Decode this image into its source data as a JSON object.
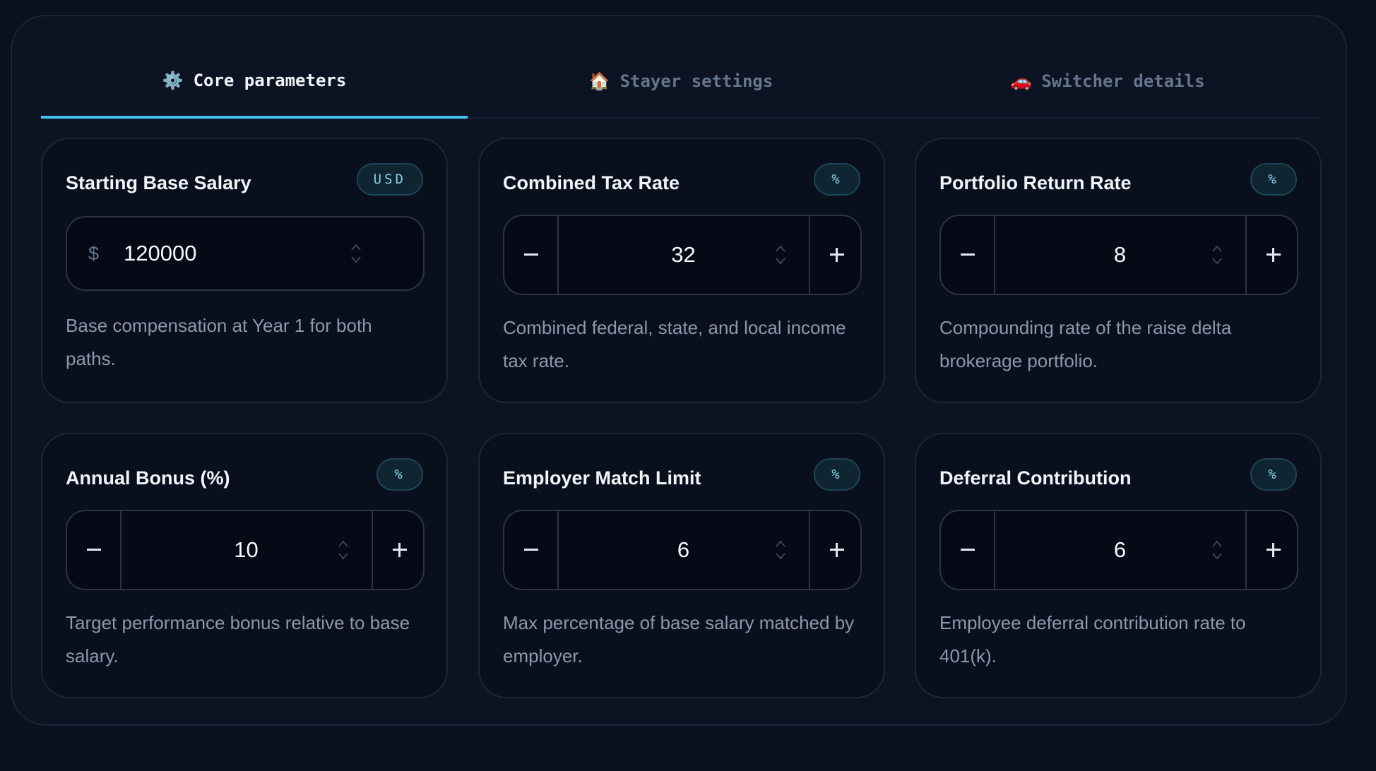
{
  "tabs": [
    {
      "icon": "⚙️",
      "label": "Core parameters"
    },
    {
      "icon": "🏠",
      "label": "Stayer settings"
    },
    {
      "icon": "🚗",
      "label": "Switcher details"
    }
  ],
  "cards": [
    {
      "title": "Starting Base Salary",
      "badge": "USD",
      "prefix": "$",
      "value": 120000,
      "description": "Base compensation at Year 1 for both paths."
    },
    {
      "title": "Combined Tax Rate",
      "badge": "%",
      "value": 32,
      "description": "Combined federal, state, and local income tax rate."
    },
    {
      "title": "Portfolio Return Rate",
      "badge": "%",
      "value": 8,
      "description": "Compounding rate of the raise delta brokerage portfolio."
    },
    {
      "title": "Annual Bonus (%)",
      "badge": "%",
      "value": 10,
      "description": "Target performance bonus relative to base salary."
    },
    {
      "title": "Employer Match Limit",
      "badge": "%",
      "value": 6,
      "description": "Max percentage of base salary matched by employer."
    },
    {
      "title": "Deferral Contribution",
      "badge": "%",
      "value": 6,
      "description": "Employee deferral contribution rate to 401(k)."
    }
  ]
}
